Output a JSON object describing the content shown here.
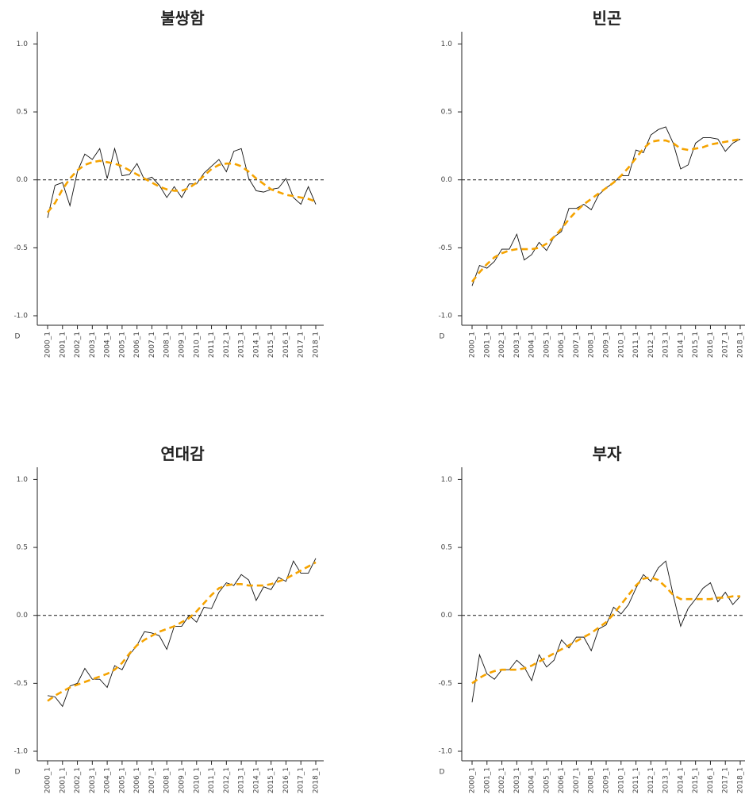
{
  "chart_data": [
    {
      "type": "line",
      "title": "불쌍함",
      "xlabel": "D",
      "categories": [
        "2000_1",
        null,
        "2001_1",
        null,
        "2002_1",
        null,
        "2003_1",
        null,
        "2004_1",
        null,
        "2005_1",
        null,
        "2006_1",
        null,
        "2007_1",
        null,
        "2008_1",
        null,
        "2009_1",
        null,
        "2010_1",
        null,
        "2011_1",
        null,
        "2012_1",
        null,
        "2013_1",
        null,
        "2014_1",
        null,
        "2015_1",
        null,
        "2016_1",
        null,
        "2017_1",
        null,
        "2018_1"
      ],
      "series": [
        {
          "color": "#111111",
          "style": "solid",
          "values": [
            -0.28,
            -0.04,
            -0.02,
            -0.19,
            0.06,
            0.19,
            0.15,
            0.23,
            0.01,
            0.23,
            0.03,
            0.04,
            0.12,
            0.0,
            0.02,
            -0.04,
            -0.13,
            -0.05,
            -0.13,
            -0.03,
            -0.03,
            0.05,
            0.1,
            0.15,
            0.06,
            0.21,
            0.23,
            0.01,
            -0.08,
            -0.09,
            -0.07,
            -0.06,
            0.01,
            -0.13,
            -0.18,
            -0.05,
            -0.18
          ]
        },
        {
          "color": "#f5a300",
          "style": "dashed",
          "values": [
            -0.24,
            -0.17,
            -0.07,
            0.01,
            0.07,
            0.11,
            0.13,
            0.14,
            0.13,
            0.12,
            0.1,
            0.07,
            0.04,
            0.01,
            -0.02,
            -0.05,
            -0.07,
            -0.08,
            -0.08,
            -0.06,
            -0.02,
            0.03,
            0.08,
            0.11,
            0.12,
            0.12,
            0.1,
            0.06,
            0.01,
            -0.03,
            -0.07,
            -0.09,
            -0.11,
            -0.12,
            -0.13,
            -0.14,
            -0.16
          ]
        }
      ],
      "hline": 0,
      "ylim": [
        -1.07,
        1.09
      ],
      "yticks": [
        {
          "value": -1,
          "label": "-1.0"
        },
        {
          "value": -0.5,
          "label": "-0.5"
        },
        {
          "value": 0,
          "label": "0.0"
        },
        {
          "value": 0.5,
          "label": "0.5"
        },
        {
          "value": 1,
          "label": "1.0"
        }
      ]
    },
    {
      "type": "line",
      "title": "빈곤",
      "xlabel": "D",
      "categories": [
        "2000_1",
        null,
        "2001_1",
        null,
        "2002_1",
        null,
        "2003_1",
        null,
        "2004_1",
        null,
        "2005_1",
        null,
        "2006_1",
        null,
        "2007_1",
        null,
        "2008_1",
        null,
        "2009_1",
        null,
        "2010_1",
        null,
        "2011_1",
        null,
        "2012_1",
        null,
        "2013_1",
        null,
        "2014_1",
        null,
        "2015_1",
        null,
        "2016_1",
        null,
        "2017_1",
        null,
        "2018_1"
      ],
      "series": [
        {
          "color": "#111111",
          "style": "solid",
          "values": [
            -0.78,
            -0.63,
            -0.65,
            -0.6,
            -0.51,
            -0.51,
            -0.4,
            -0.59,
            -0.55,
            -0.46,
            -0.52,
            -0.42,
            -0.38,
            -0.21,
            -0.21,
            -0.18,
            -0.22,
            -0.11,
            -0.06,
            -0.02,
            0.03,
            0.03,
            0.22,
            0.2,
            0.33,
            0.37,
            0.39,
            0.27,
            0.08,
            0.11,
            0.27,
            0.31,
            0.31,
            0.3,
            0.21,
            0.27,
            0.3
          ]
        },
        {
          "color": "#f5a300",
          "style": "dashed",
          "values": [
            -0.75,
            -0.68,
            -0.62,
            -0.57,
            -0.54,
            -0.52,
            -0.51,
            -0.51,
            -0.51,
            -0.5,
            -0.47,
            -0.42,
            -0.36,
            -0.29,
            -0.23,
            -0.18,
            -0.14,
            -0.1,
            -0.06,
            -0.02,
            0.03,
            0.09,
            0.16,
            0.23,
            0.28,
            0.29,
            0.29,
            0.27,
            0.23,
            0.22,
            0.23,
            0.24,
            0.26,
            0.27,
            0.28,
            0.29,
            0.3
          ]
        }
      ],
      "hline": 0,
      "ylim": [
        -1.07,
        1.09
      ],
      "yticks": [
        {
          "value": -1,
          "label": "-1.0"
        },
        {
          "value": -0.5,
          "label": "-0.5"
        },
        {
          "value": 0,
          "label": "0.0"
        },
        {
          "value": 0.5,
          "label": "0.5"
        },
        {
          "value": 1,
          "label": "1.0"
        }
      ]
    },
    {
      "type": "line",
      "title": "연대감",
      "xlabel": "D",
      "categories": [
        "2000_1",
        null,
        "2001_1",
        null,
        "2002_1",
        null,
        "2003_1",
        null,
        "2004_1",
        null,
        "2005_1",
        null,
        "2006_1",
        null,
        "2007_1",
        null,
        "2008_1",
        null,
        "2009_1",
        null,
        "2010_1",
        null,
        "2011_1",
        null,
        "2012_1",
        null,
        "2013_1",
        null,
        "2014_1",
        null,
        "2015_1",
        null,
        "2016_1",
        null,
        "2017_1",
        null,
        "2018_1"
      ],
      "series": [
        {
          "color": "#111111",
          "style": "solid",
          "values": [
            -0.59,
            -0.6,
            -0.67,
            -0.52,
            -0.5,
            -0.39,
            -0.47,
            -0.47,
            -0.53,
            -0.37,
            -0.4,
            -0.29,
            -0.22,
            -0.12,
            -0.13,
            -0.15,
            -0.25,
            -0.08,
            -0.08,
            0.0,
            -0.05,
            0.06,
            0.05,
            0.17,
            0.24,
            0.22,
            0.3,
            0.26,
            0.11,
            0.21,
            0.19,
            0.28,
            0.25,
            0.4,
            0.31,
            0.31,
            0.42
          ]
        },
        {
          "color": "#f5a300",
          "style": "dashed",
          "values": [
            -0.63,
            -0.59,
            -0.56,
            -0.53,
            -0.51,
            -0.49,
            -0.47,
            -0.45,
            -0.43,
            -0.4,
            -0.35,
            -0.28,
            -0.22,
            -0.18,
            -0.15,
            -0.12,
            -0.1,
            -0.08,
            -0.05,
            -0.02,
            0.03,
            0.09,
            0.15,
            0.2,
            0.22,
            0.23,
            0.23,
            0.22,
            0.22,
            0.22,
            0.23,
            0.25,
            0.27,
            0.3,
            0.33,
            0.36,
            0.39
          ]
        }
      ],
      "hline": 0,
      "ylim": [
        -1.07,
        1.09
      ],
      "yticks": [
        {
          "value": -1,
          "label": "-1.0"
        },
        {
          "value": -0.5,
          "label": "-0.5"
        },
        {
          "value": 0,
          "label": "0.0"
        },
        {
          "value": 0.5,
          "label": "0.5"
        },
        {
          "value": 1,
          "label": "1.0"
        }
      ]
    },
    {
      "type": "line",
      "title": "부자",
      "xlabel": "D",
      "categories": [
        "2000_1",
        null,
        "2001_1",
        null,
        "2002_1",
        null,
        "2003_1",
        null,
        "2004_1",
        null,
        "2005_1",
        null,
        "2006_1",
        null,
        "2007_1",
        null,
        "2008_1",
        null,
        "2009_1",
        null,
        "2010_1",
        null,
        "2011_1",
        null,
        "2012_1",
        null,
        "2013_1",
        null,
        "2014_1",
        null,
        "2015_1",
        null,
        "2016_1",
        null,
        "2017_1",
        null,
        "2018_1"
      ],
      "series": [
        {
          "color": "#111111",
          "style": "solid",
          "values": [
            -0.64,
            -0.29,
            -0.43,
            -0.47,
            -0.4,
            -0.4,
            -0.33,
            -0.38,
            -0.48,
            -0.29,
            -0.38,
            -0.33,
            -0.18,
            -0.24,
            -0.16,
            -0.16,
            -0.26,
            -0.1,
            -0.07,
            0.06,
            0.01,
            0.08,
            0.2,
            0.3,
            0.25,
            0.35,
            0.4,
            0.15,
            -0.08,
            0.05,
            0.12,
            0.2,
            0.24,
            0.1,
            0.17,
            0.08,
            0.14
          ]
        },
        {
          "color": "#f5a300",
          "style": "dashed",
          "values": [
            -0.5,
            -0.46,
            -0.43,
            -0.41,
            -0.4,
            -0.4,
            -0.4,
            -0.39,
            -0.37,
            -0.34,
            -0.31,
            -0.28,
            -0.25,
            -0.22,
            -0.19,
            -0.16,
            -0.13,
            -0.09,
            -0.05,
            0.01,
            0.08,
            0.15,
            0.22,
            0.27,
            0.28,
            0.26,
            0.21,
            0.15,
            0.12,
            0.12,
            0.12,
            0.12,
            0.12,
            0.13,
            0.13,
            0.14,
            0.14
          ]
        }
      ],
      "hline": 0,
      "ylim": [
        -1.07,
        1.09
      ],
      "yticks": [
        {
          "value": -1,
          "label": "-1.0"
        },
        {
          "value": -0.5,
          "label": "-0.5"
        },
        {
          "value": 0,
          "label": "0.0"
        },
        {
          "value": 0.5,
          "label": "0.5"
        },
        {
          "value": 1,
          "label": "1.0"
        }
      ]
    }
  ]
}
